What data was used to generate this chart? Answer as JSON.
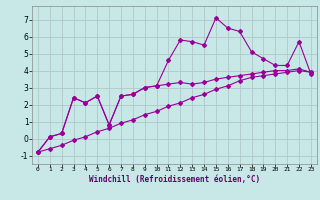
{
  "xlabel": "Windchill (Refroidissement éolien,°C)",
  "bg_color": "#c8e8e8",
  "line_color": "#990099",
  "grid_color": "#aaaaaa",
  "xlim": [
    -0.5,
    23.5
  ],
  "ylim": [
    -1.5,
    7.8
  ],
  "xticks": [
    0,
    1,
    2,
    3,
    4,
    5,
    6,
    7,
    8,
    9,
    10,
    11,
    12,
    13,
    14,
    15,
    16,
    17,
    18,
    19,
    20,
    21,
    22,
    23
  ],
  "yticks": [
    -1,
    0,
    1,
    2,
    3,
    4,
    5,
    6,
    7
  ],
  "line1_x": [
    0,
    1,
    2,
    3,
    4,
    5,
    6,
    7,
    8,
    9,
    10,
    11,
    12,
    13,
    14,
    15,
    16,
    17,
    18,
    19,
    20,
    21,
    22,
    23
  ],
  "line1_y": [
    -0.8,
    0.1,
    0.3,
    2.4,
    2.1,
    2.5,
    0.8,
    2.5,
    2.6,
    3.0,
    3.1,
    4.6,
    5.8,
    5.7,
    5.5,
    7.1,
    6.5,
    6.3,
    5.1,
    4.7,
    4.3,
    4.3,
    5.7,
    3.8
  ],
  "line2_x": [
    0,
    1,
    2,
    3,
    4,
    5,
    6,
    7,
    8,
    9,
    10,
    11,
    12,
    13,
    14,
    15,
    16,
    17,
    18,
    19,
    20,
    21,
    22,
    23
  ],
  "line2_y": [
    -0.8,
    0.1,
    0.3,
    2.4,
    2.1,
    2.5,
    0.8,
    2.5,
    2.6,
    3.0,
    3.1,
    3.2,
    3.3,
    3.2,
    3.3,
    3.5,
    3.6,
    3.7,
    3.8,
    3.9,
    4.0,
    4.0,
    4.1,
    3.9
  ],
  "line3_x": [
    0,
    1,
    2,
    3,
    4,
    5,
    6,
    7,
    8,
    9,
    10,
    11,
    12,
    13,
    14,
    15,
    16,
    17,
    18,
    19,
    20,
    21,
    22,
    23
  ],
  "line3_y": [
    -0.8,
    -0.6,
    -0.4,
    -0.1,
    0.1,
    0.4,
    0.6,
    0.9,
    1.1,
    1.4,
    1.6,
    1.9,
    2.1,
    2.4,
    2.6,
    2.9,
    3.1,
    3.4,
    3.6,
    3.7,
    3.8,
    3.9,
    4.0,
    3.9
  ]
}
